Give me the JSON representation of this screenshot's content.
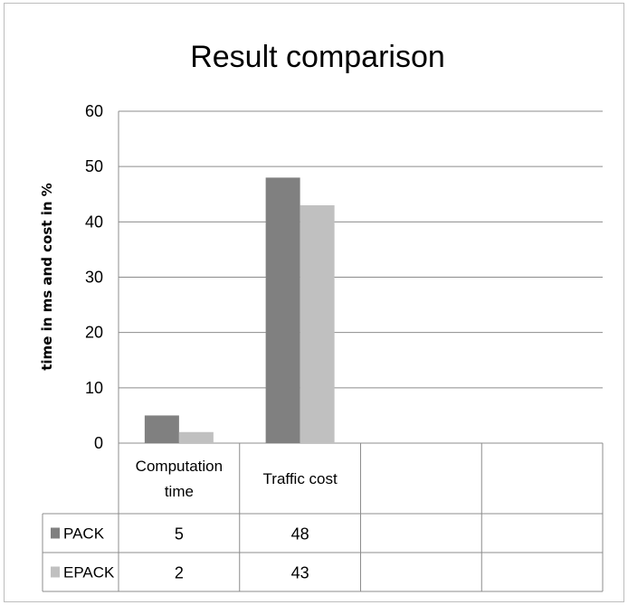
{
  "chart_data": {
    "type": "bar",
    "title": "Result comparison",
    "ylabel": "time in ms and cost in %",
    "ylim": [
      0,
      60
    ],
    "yticks": [
      0,
      10,
      20,
      30,
      40,
      50,
      60
    ],
    "grid": true,
    "legend_position": "data table (left of rows)",
    "categories": [
      "Computation time",
      "Traffic cost",
      "",
      ""
    ],
    "category_lines": [
      [
        "Computation",
        "time"
      ],
      [
        "Traffic cost"
      ],
      [
        ""
      ],
      [
        ""
      ]
    ],
    "series": [
      {
        "name": "PACK",
        "values": [
          5,
          48,
          null,
          null
        ],
        "color": "#808080"
      },
      {
        "name": "EPACK",
        "values": [
          2,
          43,
          null,
          null
        ],
        "color": "#c0c0c0"
      }
    ],
    "table": [
      [
        "5",
        "48",
        "",
        ""
      ],
      [
        "2",
        "43",
        "",
        ""
      ]
    ]
  }
}
